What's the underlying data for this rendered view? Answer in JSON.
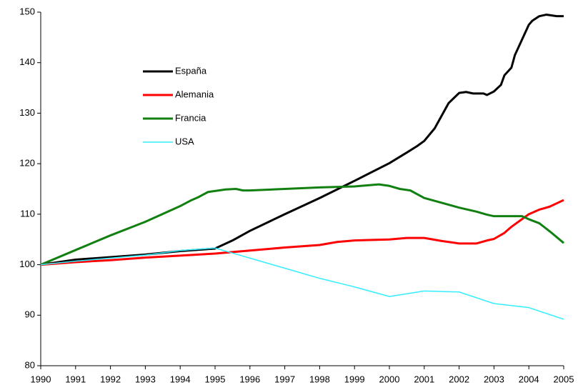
{
  "chart_data": {
    "type": "line",
    "xlim": [
      1990,
      2005
    ],
    "xticks": [
      1990,
      1991,
      1992,
      1993,
      1994,
      1995,
      1996,
      1997,
      1998,
      1999,
      2000,
      2001,
      2002,
      2003,
      2004,
      2005
    ],
    "ylim": [
      80,
      150
    ],
    "yticks": [
      80,
      90,
      100,
      110,
      120,
      130,
      140,
      150
    ],
    "grid": false,
    "legend": "upper left",
    "series": [
      {
        "name": "España",
        "color": "#000000",
        "x": [
          1990,
          1991,
          1992,
          1993,
          1994,
          1995,
          1995.5,
          1996,
          1997,
          1998,
          1999,
          2000,
          2000.5,
          2000.8,
          2001,
          2001.3,
          2001.7,
          2002,
          2002.2,
          2002.4,
          2002.7,
          2002.8,
          2003,
          2003.2,
          2003.3,
          2003.5,
          2003.6,
          2003.8,
          2004,
          2004.1,
          2004.3,
          2004.5,
          2004.8,
          2005
        ],
        "values": [
          100,
          101,
          101.5,
          102,
          102.7,
          103.2,
          104.8,
          106.7,
          110,
          113.2,
          116.6,
          120.1,
          122.2,
          123.5,
          124.5,
          127,
          132,
          134,
          134.2,
          133.9,
          133.9,
          133.6,
          134.3,
          135.6,
          137.5,
          139,
          141.5,
          144.5,
          147.5,
          148.3,
          149.2,
          149.5,
          149.2,
          149.2
        ]
      },
      {
        "name": "Alemania",
        "color": "#ff0000",
        "x": [
          1990,
          1991,
          1992,
          1993,
          1994,
          1995,
          1996,
          1997,
          1998,
          1998.5,
          1999,
          2000,
          2000.5,
          2001,
          2001.5,
          2002,
          2002.5,
          2002.8,
          2003,
          2003.3,
          2003.5,
          2004,
          2004.3,
          2004.6,
          2005
        ],
        "values": [
          100,
          100.5,
          100.9,
          101.4,
          101.8,
          102.2,
          102.8,
          103.4,
          103.9,
          104.5,
          104.8,
          105,
          105.3,
          105.3,
          104.7,
          104.2,
          104.2,
          104.8,
          105.1,
          106.3,
          107.5,
          110,
          110.9,
          111.5,
          112.8
        ]
      },
      {
        "name": "Francia",
        "color": "#118011",
        "x": [
          1990,
          1991,
          1992,
          1993,
          1994,
          1994.3,
          1994.5,
          1994.8,
          1995,
          1995.3,
          1995.6,
          1995.8,
          1996,
          1997,
          1998,
          1999,
          1999.7,
          2000,
          2000.3,
          2000.6,
          2001,
          2002,
          2002.5,
          2002.8,
          2003,
          2003.8,
          2004,
          2004.3,
          2004.6,
          2005
        ],
        "values": [
          100,
          102.9,
          105.8,
          108.5,
          111.6,
          112.7,
          113.3,
          114.4,
          114.6,
          114.9,
          115,
          114.7,
          114.7,
          115,
          115.3,
          115.5,
          115.9,
          115.6,
          115,
          114.7,
          113.2,
          111.3,
          110.5,
          109.9,
          109.6,
          109.6,
          109,
          108.2,
          106.6,
          104.3
        ]
      },
      {
        "name": "USA",
        "color": "#33eeff",
        "x": [
          1990,
          1991,
          1992,
          1993,
          1994,
          1995,
          1995.5,
          1996,
          1997,
          1998,
          1999,
          2000,
          2001,
          2002,
          2003,
          2004,
          2005
        ],
        "values": [
          100,
          100.7,
          101.3,
          101.9,
          102.8,
          103.3,
          102.3,
          101.3,
          99.3,
          97.3,
          95.6,
          93.7,
          94.8,
          94.6,
          92.3,
          91.5,
          89.2
        ]
      }
    ]
  }
}
